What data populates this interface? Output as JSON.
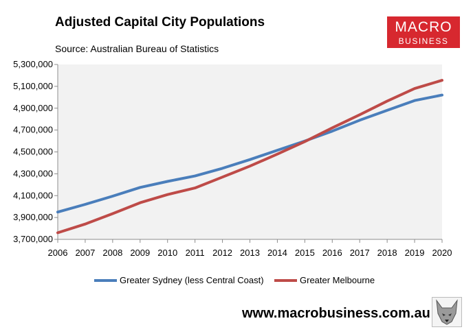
{
  "title": "Adjusted Capital City Populations",
  "source": "Source: Australian Bureau of Statistics",
  "logo": {
    "line1": "MACRO",
    "line2": "BUSINESS"
  },
  "footer": {
    "url": "www.macrobusiness.com.au"
  },
  "colors": {
    "sydney": "#4a7ebb",
    "melbourne": "#be4b48",
    "plot_bg": "#f2f2f2",
    "logo_bg": "#d7282f"
  },
  "chart_data": {
    "type": "line",
    "title": "Adjusted Capital City Populations",
    "xlabel": "",
    "ylabel": "",
    "ylim": [
      3700000,
      5300000
    ],
    "yticks": [
      3700000,
      3900000,
      4100000,
      4300000,
      4500000,
      4700000,
      4900000,
      5100000,
      5300000
    ],
    "ytick_labels": [
      "3,700,000",
      "3,900,000",
      "4,100,000",
      "4,300,000",
      "4,500,000",
      "4,700,000",
      "4,900,000",
      "5,100,000",
      "5,300,000"
    ],
    "x": [
      "2006",
      "2007",
      "2008",
      "2009",
      "2010",
      "2011",
      "2012",
      "2013",
      "2014",
      "2015",
      "2016",
      "2017",
      "2018",
      "2019",
      "2020"
    ],
    "grid": false,
    "legend": "bottom",
    "series": [
      {
        "name": "Greater Sydney (less Central Coast)",
        "color": "#4a7ebb",
        "values": [
          3950000,
          4020000,
          4095000,
          4175000,
          4230000,
          4280000,
          4350000,
          4430000,
          4515000,
          4600000,
          4690000,
          4790000,
          4880000,
          4970000,
          5020000
        ]
      },
      {
        "name": "Greater Melbourne",
        "color": "#be4b48",
        "values": [
          3760000,
          3840000,
          3935000,
          4035000,
          4110000,
          4170000,
          4270000,
          4370000,
          4480000,
          4595000,
          4720000,
          4840000,
          4965000,
          5080000,
          5155000
        ]
      }
    ]
  }
}
